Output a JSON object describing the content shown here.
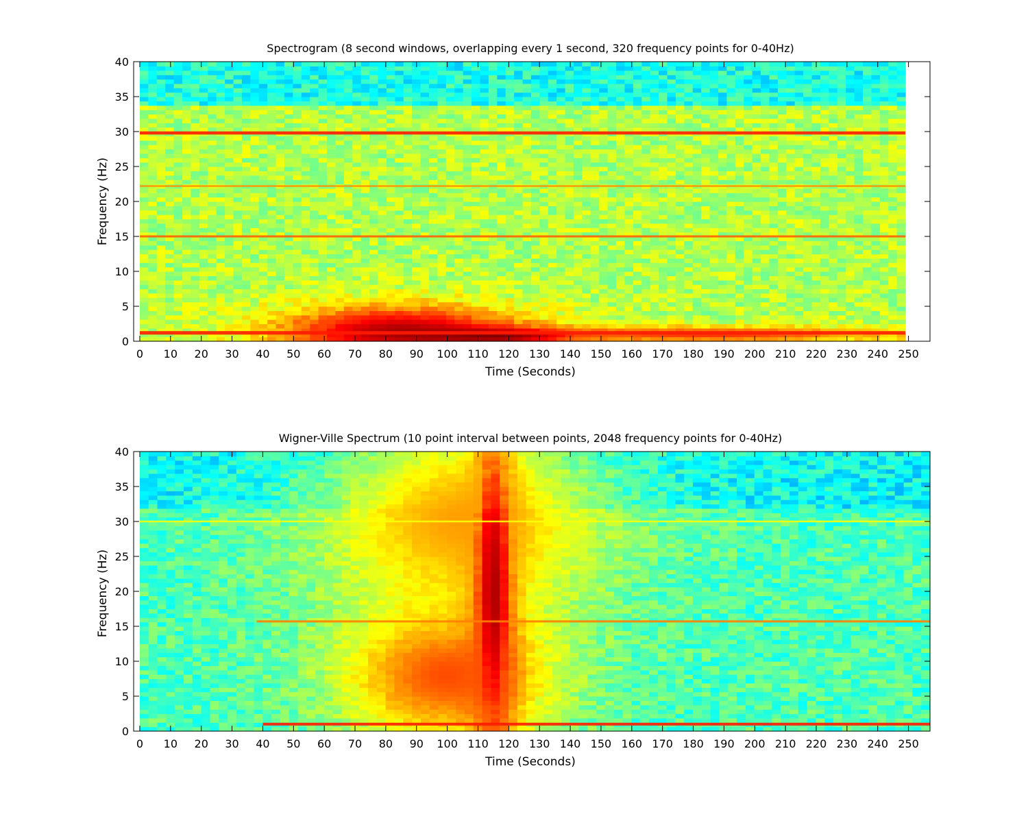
{
  "chart_data": [
    {
      "type": "heatmap",
      "title": "Spectrogram (8 second windows, overlapping every 1 second, 320 frequency points for 0-40Hz)",
      "xlabel": "Time (Seconds)",
      "ylabel": "Frequency (Hz)",
      "xlim": [
        -2,
        257
      ],
      "ylim": [
        0,
        40
      ],
      "data_xrange": [
        0,
        249
      ],
      "xticks": [
        0,
        10,
        20,
        30,
        40,
        50,
        60,
        70,
        80,
        90,
        100,
        110,
        120,
        130,
        140,
        150,
        160,
        170,
        180,
        190,
        200,
        210,
        220,
        230,
        240,
        250
      ],
      "yticks": [
        0,
        5,
        10,
        15,
        20,
        25,
        30,
        35,
        40
      ],
      "colormap": "jet",
      "background_level": 0.55,
      "top_band": {
        "from": 34,
        "to": 40,
        "level": 0.4
      },
      "line_features": [
        {
          "freq": 1.2,
          "start": 0,
          "end": 249,
          "level": 0.85,
          "width": 0.5
        },
        {
          "freq": 29.8,
          "start": 0,
          "end": 249,
          "level": 0.85,
          "width": 0.45
        },
        {
          "freq": 15.0,
          "start": 0,
          "end": 249,
          "level": 0.78,
          "width": 0.3
        },
        {
          "freq": 22.2,
          "start": 0,
          "end": 249,
          "level": 0.73,
          "width": 0.25
        }
      ],
      "blob_features": [
        {
          "t": 85,
          "f": 1.5,
          "t_radius": 42,
          "f_radius": 3.8,
          "level": 0.95
        },
        {
          "t": 115,
          "f": 0.8,
          "t_radius": 30,
          "f_radius": 1.2,
          "level": 1.0
        },
        {
          "t": 185,
          "f": 1.0,
          "t_radius": 65,
          "f_radius": 1.2,
          "level": 0.82
        }
      ]
    },
    {
      "type": "heatmap",
      "title": "Wigner-Ville Spectrum (10 point interval between points, 2048 frequency points for 0-40Hz)",
      "xlabel": "Time (Seconds)",
      "ylabel": "Frequency (Hz)",
      "xlim": [
        -2,
        257
      ],
      "ylim": [
        0,
        40
      ],
      "data_xrange": [
        0,
        257
      ],
      "xticks": [
        0,
        10,
        20,
        30,
        40,
        50,
        60,
        70,
        80,
        90,
        100,
        110,
        120,
        130,
        140,
        150,
        160,
        170,
        180,
        190,
        200,
        210,
        220,
        230,
        240,
        250
      ],
      "yticks": [
        0,
        5,
        10,
        15,
        20,
        25,
        30,
        35,
        40
      ],
      "colormap": "jet",
      "background_level": 0.45,
      "top_band": {
        "from": 32,
        "to": 40,
        "level": 0.38
      },
      "line_features": [
        {
          "freq": 1.0,
          "start": 40,
          "end": 257,
          "level": 0.85,
          "width": 0.4
        },
        {
          "freq": 15.7,
          "start": 38,
          "end": 257,
          "level": 0.75,
          "width": 0.3
        },
        {
          "freq": 30.0,
          "start": 0,
          "end": 257,
          "level": 0.62,
          "width": 0.25
        }
      ],
      "blob_features": [
        {
          "t": 115,
          "f": 20,
          "t_radius": 8,
          "f_radius": 30,
          "level": 0.95
        },
        {
          "t": 100,
          "f": 8,
          "t_radius": 35,
          "f_radius": 10,
          "level": 0.8
        },
        {
          "t": 105,
          "f": 30,
          "t_radius": 45,
          "f_radius": 14,
          "level": 0.72
        }
      ]
    }
  ]
}
